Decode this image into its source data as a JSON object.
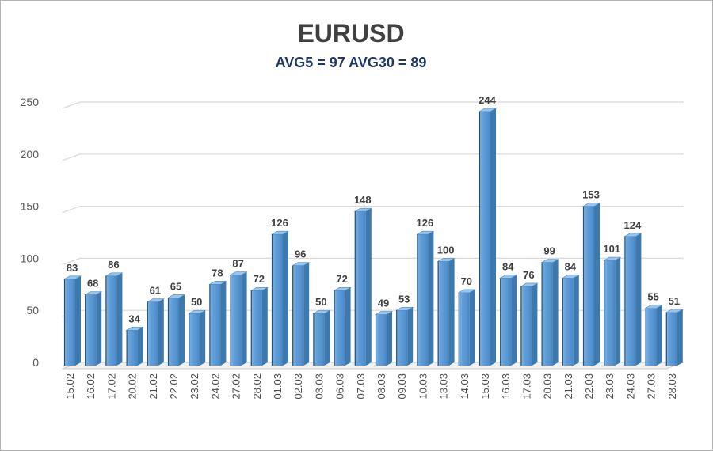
{
  "chart_data": {
    "type": "bar",
    "style": "3d-column",
    "title": "EURUSD",
    "subtitle": "AVG5 = 97 AVG30 = 89",
    "avg5": 97,
    "avg30": 89,
    "categories": [
      "15.02",
      "16.02",
      "17.02",
      "20.02",
      "21.02",
      "22.02",
      "23.02",
      "24.02",
      "27.02",
      "28.02",
      "01.03",
      "02.03",
      "03.03",
      "06.03",
      "07.03",
      "08.03",
      "09.03",
      "10.03",
      "13.03",
      "14.03",
      "15.03",
      "16.03",
      "17.03",
      "20.03",
      "21.03",
      "22.03",
      "23.03",
      "24.03",
      "27.03",
      "28.03"
    ],
    "values": [
      83,
      68,
      86,
      34,
      61,
      65,
      50,
      78,
      87,
      72,
      126,
      96,
      50,
      72,
      148,
      49,
      53,
      126,
      100,
      70,
      244,
      84,
      76,
      99,
      84,
      153,
      101,
      124,
      55,
      51
    ],
    "xlabel": "",
    "ylabel": "",
    "ylim": [
      0,
      250
    ],
    "yticks": [
      0,
      50,
      100,
      150,
      200,
      250
    ],
    "grid": true,
    "legend_position": "none"
  },
  "colors": {
    "background": "#FFFFFF",
    "page_border": "#B3B3B3",
    "title": "#404040",
    "subtitle": "#203864",
    "axis_label": "#595959",
    "value_label": "#3F3F3F",
    "gridline": "#D8D8D8",
    "floor_fill": "#F1F1F1",
    "floor_edge": "#CCCCCC",
    "bar_face_light": "#83B4E2",
    "bar_face": "#5593D0",
    "bar_face_dark": "#4685C2",
    "bar_left_edge": "#24517D",
    "bar_top": "#9AC4EA",
    "bar_top_edge": "#4A88C0",
    "bar_side": "#3E79AE"
  }
}
